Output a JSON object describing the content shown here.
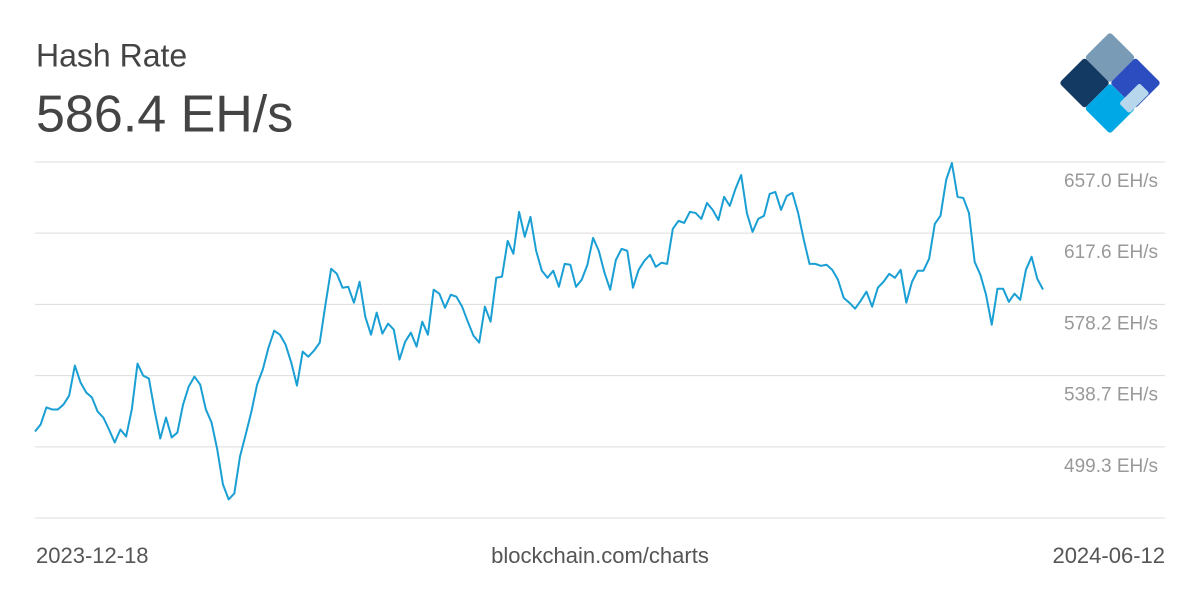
{
  "chart_data": {
    "type": "line",
    "title": "Hash Rate",
    "subtitle": "586.4 EH/s",
    "source": "blockchain.com/charts",
    "categories": [
      "2023-12-18",
      null,
      null,
      null,
      null,
      null,
      null,
      null,
      null,
      null,
      null,
      null,
      null,
      null,
      null,
      null,
      null,
      null,
      null,
      null,
      null,
      null,
      null,
      null,
      null,
      null,
      null,
      null,
      null,
      null,
      null,
      null,
      null,
      null,
      null,
      null,
      null,
      null,
      null,
      null,
      null,
      null,
      null,
      null,
      null,
      null,
      null,
      null,
      null,
      null,
      null,
      null,
      null,
      null,
      null,
      null,
      null,
      null,
      null,
      null,
      null,
      null,
      null,
      null,
      null,
      null,
      null,
      null,
      null,
      null,
      null,
      null,
      null,
      null,
      null,
      null,
      null,
      null,
      null,
      null,
      null,
      null,
      null,
      null,
      null,
      null,
      null,
      null,
      null,
      null,
      null,
      null,
      null,
      null,
      null,
      null,
      null,
      null,
      null,
      null,
      null,
      null,
      null,
      null,
      null,
      null,
      null,
      null,
      null,
      null,
      null,
      null,
      null,
      null,
      null,
      null,
      null,
      null,
      null,
      null,
      null,
      null,
      null,
      null,
      null,
      null,
      null,
      null,
      null,
      null,
      null,
      null,
      null,
      null,
      null,
      null,
      null,
      null,
      null,
      null,
      null,
      null,
      null,
      null,
      null,
      null,
      null,
      null,
      null,
      null,
      null,
      null,
      null,
      null,
      null,
      null,
      null,
      null,
      null,
      null,
      null,
      null,
      null,
      null,
      null,
      null,
      null,
      null,
      null,
      null,
      null,
      null,
      null,
      null,
      null,
      null,
      null,
      "2024-06-12"
    ],
    "series": [
      {
        "name": "Hash Rate",
        "color": "#1a9fd4",
        "values": [
          507.8,
          511.7,
          521.1,
          520.0,
          520.0,
          522.7,
          527.7,
          544.3,
          534.9,
          529.4,
          526.6,
          518.8,
          515.5,
          508.9,
          501.7,
          508.9,
          505.0,
          520.0,
          545.4,
          538.7,
          537.1,
          519.4,
          503.9,
          515.5,
          504.5,
          507.2,
          522.7,
          532.7,
          538.2,
          533.8,
          520.0,
          512.8,
          497.9,
          478.5,
          470.2,
          473.5,
          494.0,
          506.1,
          518.8,
          533.8,
          542.1,
          554.2,
          563.6,
          561.4,
          555.9,
          545.9,
          533.2,
          552.0,
          549.2,
          552.6,
          557.0,
          578.0,
          597.9,
          595.1,
          587.4,
          587.9,
          579.1,
          590.7,
          571.3,
          561.4,
          573.6,
          562.0,
          567.5,
          564.2,
          547.6,
          557.5,
          562.5,
          554.8,
          568.6,
          561.4,
          586.3,
          584.1,
          576.3,
          583.5,
          582.4,
          576.9,
          568.6,
          560.8,
          557.0,
          576.9,
          568.6,
          592.9,
          593.5,
          613.3,
          606.2,
          629.4,
          615.6,
          626.6,
          607.8,
          596.8,
          592.9,
          596.8,
          587.9,
          600.6,
          600.1,
          587.9,
          591.8,
          600.1,
          615.0,
          607.8,
          595.7,
          586.3,
          602.8,
          608.9,
          607.8,
          587.4,
          597.3,
          602.3,
          605.6,
          599.0,
          601.2,
          600.6,
          620.0,
          624.4,
          623.3,
          629.4,
          628.8,
          625.5,
          634.3,
          630.5,
          624.9,
          637.7,
          632.7,
          642.1,
          649.8,
          628.8,
          618.3,
          625.5,
          627.2,
          639.3,
          640.4,
          630.5,
          638.2,
          639.9,
          628.8,
          613.9,
          600.6,
          600.6,
          599.5,
          600.1,
          597.3,
          591.8,
          581.8,
          579.1,
          575.8,
          580.2,
          585.2,
          576.9,
          587.4,
          590.7,
          595.1,
          592.9,
          597.3,
          579.1,
          590.7,
          596.8,
          596.8,
          603.4,
          622.7,
          627.2,
          647.1,
          656.4,
          637.7,
          637.1,
          628.8,
          601.7,
          594.6,
          583.5,
          566.9,
          586.8,
          586.8,
          579.6,
          584.1,
          580.7,
          597.3,
          604.5,
          592.3,
          586.4
        ]
      }
    ],
    "ylim": [
      459.9,
      657.0
    ],
    "yticks": [
      {
        "value": 657.0,
        "label": "657.0 EH/s"
      },
      {
        "value": 617.6,
        "label": "617.6 EH/s"
      },
      {
        "value": 578.2,
        "label": "578.2 EH/s"
      },
      {
        "value": 538.7,
        "label": "538.7 EH/s"
      },
      {
        "value": 499.3,
        "label": "499.3 EH/s"
      }
    ],
    "grid": true
  }
}
